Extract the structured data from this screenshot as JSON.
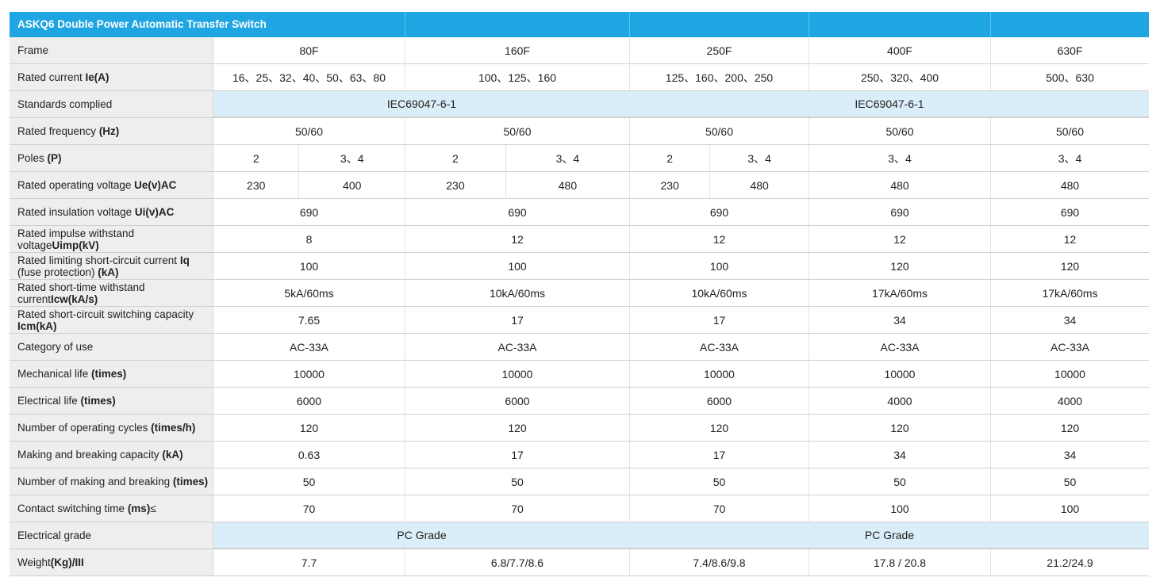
{
  "title": "ASKQ6 Double Power Automatic Transfer Switch",
  "accent_color": "#1ea5e2",
  "rows": [
    {
      "label": "Frame",
      "bold": "",
      "values": [
        "80F",
        "160F",
        "250F",
        "400F",
        "630F"
      ]
    },
    {
      "label": "Rated current ",
      "bold": "Ie(A)",
      "values": [
        "16、25、32、40、50、63、80",
        "100、125、160",
        "125、160、200、250",
        "250、320、400",
        "500、630"
      ]
    },
    {
      "label": "Rated frequency ",
      "bold": "(Hz)",
      "values": [
        "50/60",
        "50/60",
        "50/60",
        "50/60",
        "50/60"
      ]
    },
    {
      "label": "Rated insulation voltage ",
      "bold": "Ui(v)AC",
      "values": [
        "690",
        "690",
        "690",
        "690",
        "690"
      ]
    },
    {
      "label": "Rated impulse withstand voltage",
      "bold": "Uimp(kV)",
      "values": [
        "8",
        "12",
        "12",
        "12",
        "12"
      ]
    },
    {
      "label": "Rated limiting short-circuit current ",
      "bold": "Iq",
      "label2": "(fuse protection) ",
      "bold2": "(kA)",
      "values": [
        "100",
        "100",
        "100",
        "120",
        "120"
      ]
    },
    {
      "label": "Rated short-time withstand current",
      "bold": "Icw(kA/s)",
      "values": [
        "5kA/60ms",
        "10kA/60ms",
        "10kA/60ms",
        "17kA/60ms",
        "17kA/60ms"
      ]
    },
    {
      "label": "Rated short-circuit switching capacity ",
      "bold": "Icm(kA)",
      "values": [
        "7.65",
        "17",
        "17",
        "34",
        "34"
      ]
    },
    {
      "label": "Category of use",
      "bold": "",
      "values": [
        "AC-33A",
        "AC-33A",
        "AC-33A",
        "AC-33A",
        "AC-33A"
      ]
    },
    {
      "label": "Mechanical life ",
      "bold": "(times)",
      "values": [
        "10000",
        "10000",
        "10000",
        "10000",
        "10000"
      ]
    },
    {
      "label": "Electrical life ",
      "bold": "(times)",
      "values": [
        "6000",
        "6000",
        "6000",
        "4000",
        "4000"
      ]
    },
    {
      "label": "Number of operating cycles ",
      "bold": "(times/h)",
      "values": [
        "120",
        "120",
        "120",
        "120",
        "120"
      ]
    },
    {
      "label": "Making and breaking capacity ",
      "bold": "(kA)",
      "values": [
        "0.63",
        "17",
        "17",
        "34",
        "34"
      ]
    },
    {
      "label": "Number of making and breaking ",
      "bold": "(times)",
      "values": [
        "50",
        "50",
        "50",
        "50",
        "50"
      ]
    },
    {
      "label": "Contact switching time ",
      "bold": "(ms)",
      "suffix": "≤",
      "values": [
        "70",
        "70",
        "70",
        "100",
        "100"
      ]
    },
    {
      "label": "Weight",
      "bold": "(Kg)/III",
      "values": [
        "7.7",
        "6.8/7.7/8.6",
        "7.4/8.6/9.8",
        "17.8 / 20.8",
        "21.2/24.9"
      ]
    }
  ],
  "standards": {
    "label": "Standards  complied",
    "left": "IEC69047-6-1",
    "right": "IEC69047-6-1"
  },
  "grade": {
    "label": "Electrical grade",
    "left": "PC Grade",
    "right": "PC Grade"
  },
  "poles": {
    "label": "Poles ",
    "bold": "(P)",
    "values": [
      [
        "2",
        "3、4"
      ],
      [
        "2",
        "3、4"
      ],
      [
        "2",
        "3、4"
      ],
      "3、4",
      "3、4"
    ]
  },
  "voltage": {
    "label": "Rated operating voltage ",
    "bold": "Ue(v)AC",
    "values": [
      [
        "230",
        "400"
      ],
      [
        "230",
        "480"
      ],
      [
        "230",
        "480"
      ],
      "480",
      "480"
    ]
  }
}
